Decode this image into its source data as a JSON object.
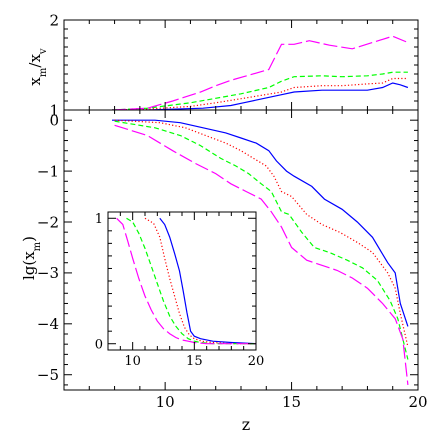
{
  "chart_data": [
    {
      "type": "line",
      "panel": "top",
      "ylabel": "x_m/x_v",
      "xlim": [
        6,
        20
      ],
      "ylim": [
        1,
        2
      ],
      "x_ticks": [
        10,
        15,
        20
      ],
      "y_ticks": [
        1,
        2
      ],
      "y_tick_labels": [
        "1",
        "2"
      ],
      "series": [
        {
          "color": "#0000ff",
          "dash": "solid",
          "x": [
            7.9,
            9.3,
            11.5,
            12.6,
            13.1,
            13.6,
            14.6,
            15.1,
            16.2,
            17.0,
            18.0,
            18.6,
            19.0,
            19.3,
            19.6
          ],
          "y": [
            1.0,
            1.0,
            1.02,
            1.05,
            1.08,
            1.11,
            1.17,
            1.2,
            1.22,
            1.22,
            1.22,
            1.25,
            1.3,
            1.28,
            1.25
          ]
        },
        {
          "color": "#ff0000",
          "dash": "dotted",
          "x": [
            7.9,
            9.3,
            11.0,
            12.0,
            13.1,
            14.6,
            15.1,
            16.2,
            17.0,
            18.0,
            18.6,
            19.0,
            19.6
          ],
          "y": [
            1.0,
            1.01,
            1.04,
            1.08,
            1.13,
            1.2,
            1.25,
            1.27,
            1.27,
            1.29,
            1.3,
            1.35,
            1.35
          ]
        },
        {
          "color": "#00ff00",
          "dash": "dashed",
          "x": [
            7.9,
            9.3,
            11.0,
            12.0,
            13.0,
            14.1,
            14.6,
            15.1,
            16.2,
            17.0,
            18.0,
            18.6,
            19.0,
            19.6
          ],
          "y": [
            1.0,
            1.02,
            1.08,
            1.13,
            1.18,
            1.25,
            1.32,
            1.37,
            1.38,
            1.37,
            1.38,
            1.4,
            1.42,
            1.42
          ]
        },
        {
          "color": "#ff00ff",
          "dash": "long-dashed",
          "x": [
            7.9,
            9.3,
            10.3,
            11.4,
            12.0,
            12.6,
            13.1,
            14.1,
            14.6,
            15.1,
            15.7,
            16.5,
            17.4,
            18.2,
            19.0,
            19.6
          ],
          "y": [
            1.0,
            1.02,
            1.1,
            1.2,
            1.27,
            1.33,
            1.37,
            1.45,
            1.73,
            1.73,
            1.77,
            1.72,
            1.68,
            1.75,
            1.82,
            1.75
          ]
        }
      ]
    },
    {
      "type": "line",
      "panel": "bottom",
      "xlabel": "z",
      "ylabel": "lg(x_m)",
      "xlim": [
        6,
        20
      ],
      "ylim": [
        -5.3,
        0.2
      ],
      "x_ticks": [
        10,
        15,
        20
      ],
      "y_ticks": [
        0,
        -1,
        -2,
        -3,
        -4,
        -5
      ],
      "y_tick_labels": [
        "0",
        "−1",
        "−2",
        "−3",
        "−4",
        "−5"
      ],
      "series": [
        {
          "color": "#0000ff",
          "dash": "solid",
          "x": [
            7.9,
            9.6,
            10.6,
            11.5,
            12.4,
            13.0,
            13.6,
            14.1,
            14.4,
            14.8,
            15.1,
            15.8,
            16.3,
            17.0,
            17.6,
            18.2,
            18.8,
            19.1,
            19.3,
            19.6
          ],
          "y": [
            0.0,
            0.0,
            -0.05,
            -0.15,
            -0.25,
            -0.35,
            -0.45,
            -0.6,
            -0.8,
            -1.0,
            -1.1,
            -1.3,
            -1.55,
            -1.75,
            -2.0,
            -2.3,
            -2.8,
            -3.0,
            -3.6,
            -4.05
          ]
        },
        {
          "color": "#ff0000",
          "dash": "dotted",
          "x": [
            8.0,
            9.8,
            10.8,
            11.6,
            12.4,
            13.0,
            13.5,
            14.0,
            14.3,
            14.6,
            15.0,
            15.6,
            16.2,
            16.9,
            17.6,
            18.2,
            18.8,
            19.1,
            19.3,
            19.6
          ],
          "y": [
            0.0,
            -0.05,
            -0.15,
            -0.3,
            -0.45,
            -0.6,
            -0.75,
            -0.9,
            -1.1,
            -1.4,
            -1.5,
            -1.85,
            -2.05,
            -2.2,
            -2.4,
            -2.6,
            -3.0,
            -3.3,
            -3.8,
            -4.45
          ]
        },
        {
          "color": "#00ff00",
          "dash": "dashed",
          "x": [
            8.0,
            9.6,
            10.6,
            11.4,
            12.2,
            12.8,
            13.3,
            13.8,
            14.2,
            14.6,
            14.9,
            15.4,
            15.9,
            16.5,
            17.2,
            17.8,
            18.4,
            18.9,
            19.2,
            19.6
          ],
          "y": [
            -0.02,
            -0.15,
            -0.3,
            -0.5,
            -0.75,
            -0.9,
            -1.05,
            -1.25,
            -1.4,
            -1.8,
            -1.85,
            -2.2,
            -2.5,
            -2.6,
            -2.75,
            -2.9,
            -3.15,
            -3.55,
            -3.9,
            -4.7
          ]
        },
        {
          "color": "#ff00ff",
          "dash": "long-dashed",
          "x": [
            8.0,
            9.3,
            10.3,
            11.2,
            12.0,
            12.6,
            13.2,
            13.8,
            14.2,
            14.6,
            15.0,
            15.6,
            16.2,
            16.8,
            17.4,
            18.0,
            18.6,
            19.1,
            19.4,
            19.6
          ],
          "y": [
            -0.1,
            -0.3,
            -0.6,
            -0.85,
            -1.05,
            -1.25,
            -1.4,
            -1.55,
            -1.8,
            -2.1,
            -2.5,
            -2.75,
            -2.85,
            -2.95,
            -3.1,
            -3.3,
            -3.6,
            -3.9,
            -4.3,
            -5.2
          ]
        }
      ]
    },
    {
      "type": "line",
      "panel": "inset",
      "xlim": [
        8,
        20
      ],
      "ylim": [
        -0.05,
        1.05
      ],
      "x_ticks": [
        10,
        15,
        20
      ],
      "y_ticks": [
        0,
        1
      ],
      "y_tick_labels": [
        "0",
        "1"
      ],
      "series": [
        {
          "color": "#0000ff",
          "dash": "solid",
          "x": [
            12.2,
            12.6,
            13.0,
            13.4,
            13.8,
            14.1,
            14.4,
            14.7,
            15.0,
            15.5,
            16.5,
            18.0,
            20.0
          ],
          "y": [
            1.0,
            0.95,
            0.85,
            0.72,
            0.58,
            0.42,
            0.25,
            0.1,
            0.06,
            0.04,
            0.02,
            0.01,
            0.0
          ]
        },
        {
          "color": "#ff0000",
          "dash": "dotted",
          "x": [
            11.0,
            11.7,
            12.2,
            12.6,
            13.0,
            13.4,
            13.8,
            14.2,
            14.6,
            15.0,
            15.6,
            16.5,
            18.0,
            20.0
          ],
          "y": [
            1.0,
            0.96,
            0.85,
            0.68,
            0.52,
            0.38,
            0.24,
            0.13,
            0.07,
            0.04,
            0.02,
            0.01,
            0.0,
            0.0
          ]
        },
        {
          "color": "#00ff00",
          "dash": "dashed",
          "x": [
            9.5,
            10.0,
            10.5,
            11.0,
            11.5,
            12.0,
            12.5,
            13.0,
            13.5,
            14.0,
            14.5,
            15.0,
            15.5,
            16.5,
            18.0,
            20.0
          ],
          "y": [
            1.0,
            0.97,
            0.88,
            0.76,
            0.62,
            0.48,
            0.34,
            0.22,
            0.14,
            0.08,
            0.04,
            0.02,
            0.01,
            0.0,
            0.0,
            0.0
          ]
        },
        {
          "color": "#ff00ff",
          "dash": "long-dashed",
          "x": [
            8.7,
            9.2,
            9.6,
            10.0,
            10.5,
            11.0,
            11.5,
            12.0,
            12.5,
            13.0,
            13.5,
            14.0,
            14.5,
            15.0,
            16.0,
            17.0,
            18.5,
            20.0
          ],
          "y": [
            1.0,
            0.95,
            0.82,
            0.68,
            0.52,
            0.38,
            0.27,
            0.18,
            0.12,
            0.08,
            0.05,
            0.03,
            0.02,
            0.01,
            0.0,
            0.0,
            0.0,
            0.0
          ]
        }
      ]
    }
  ]
}
